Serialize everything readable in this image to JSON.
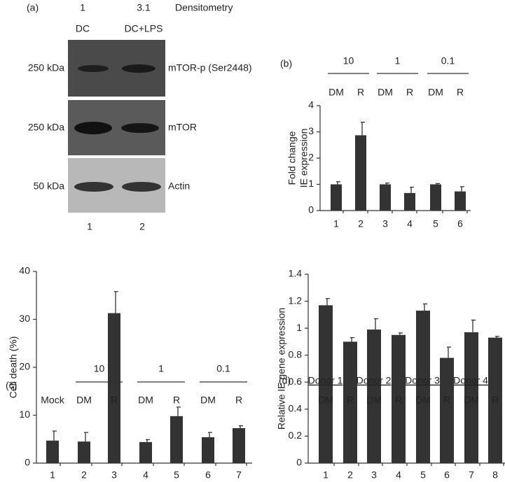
{
  "panel_a": {
    "label": "(a)",
    "densitometry": {
      "values": [
        1,
        3.1
      ],
      "label": "Densitometry"
    },
    "lanes": [
      "DC",
      "DC+LPS"
    ],
    "lane_numbers": [
      1,
      2
    ],
    "blots": [
      {
        "size": "250 kDa",
        "label": "mTOR-p (Ser2448)"
      },
      {
        "size": "250 kDa",
        "label": "mTOR"
      },
      {
        "size": "50 kDa",
        "label": "Actin"
      }
    ]
  },
  "chart_data": [
    {
      "type": "bar",
      "title": "(b)",
      "ylabel": [
        "Fold change",
        "IE expression"
      ],
      "group_labels": [
        "10",
        "1",
        "0.1"
      ],
      "sublabels": [
        "DM",
        "R",
        "DM",
        "R",
        "DM",
        "R"
      ],
      "categories": [
        "1",
        "2",
        "3",
        "4",
        "5",
        "6"
      ],
      "values": [
        1.0,
        2.87,
        1.0,
        0.67,
        1.0,
        0.73
      ],
      "errors": [
        0.1,
        0.5,
        0.05,
        0.22,
        0.03,
        0.18
      ],
      "color": "#333333",
      "ylim": [
        0,
        4
      ],
      "yticks": [
        0,
        1,
        2,
        3,
        4
      ]
    },
    {
      "type": "bar",
      "title": "(c)",
      "ylabel": [
        "Cell death (%)"
      ],
      "group_labels": [
        "10",
        "1",
        "0.1"
      ],
      "sublabels": [
        "Mock",
        "DM",
        "R",
        "DM",
        "R",
        "DM",
        "R"
      ],
      "categories": [
        "1",
        "2",
        "3",
        "4",
        "5",
        "6",
        "7"
      ],
      "values": [
        4.7,
        4.5,
        31.3,
        4.4,
        9.8,
        5.4,
        7.3
      ],
      "errors": [
        2.0,
        1.9,
        4.5,
        0.5,
        1.9,
        1.0,
        0.5
      ],
      "color": "#333333",
      "ylim": [
        0,
        40
      ],
      "yticks": [
        0,
        10,
        20,
        30,
        40
      ]
    },
    {
      "type": "bar",
      "title": "(d)",
      "ylabel": [
        "Relative IE gene expression"
      ],
      "group_labels": [
        "Donor 1",
        "Donor 2",
        "Donor 3",
        "Donor 4"
      ],
      "sublabels": [
        "DM",
        "R",
        "DM",
        "R",
        "DM",
        "R",
        "DM",
        "R"
      ],
      "categories": [
        "1",
        "2",
        "3",
        "4",
        "5",
        "6",
        "7",
        "8"
      ],
      "values": [
        1.17,
        0.9,
        0.99,
        0.95,
        1.13,
        0.78,
        0.97,
        0.93
      ],
      "errors": [
        0.05,
        0.03,
        0.08,
        0.015,
        0.05,
        0.08,
        0.09,
        0.01
      ],
      "color": "#333333",
      "ylim": [
        0,
        1.4
      ],
      "yticks": [
        0,
        0.2,
        0.4,
        0.6,
        0.8,
        1,
        1.2,
        1.4
      ]
    }
  ]
}
